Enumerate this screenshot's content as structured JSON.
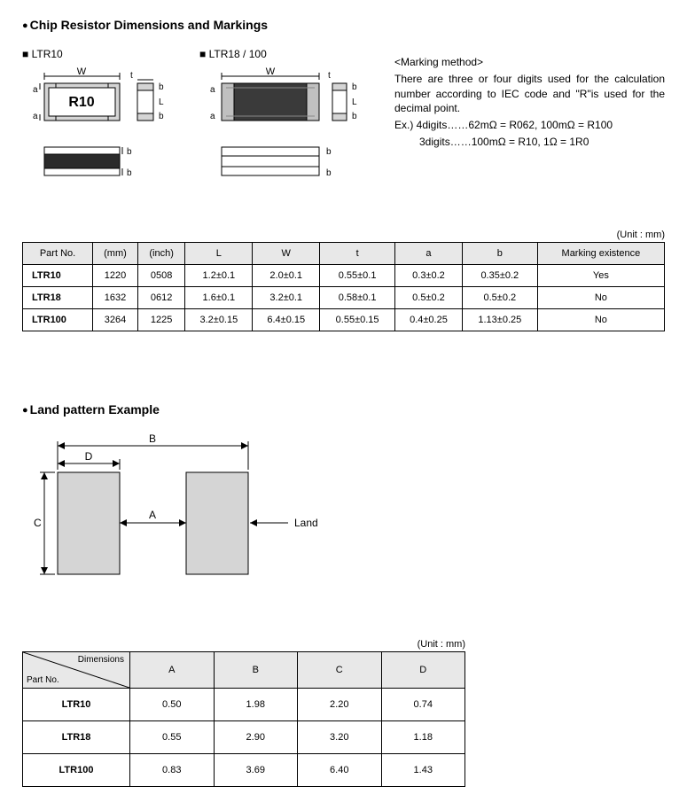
{
  "section1": {
    "title": "Chip Resistor Dimensions and Markings",
    "sub1": "LTR10",
    "sub2": "LTR18 / 100",
    "chip_label": "R10",
    "marking": {
      "title": "<Marking method>",
      "body": "There are three or four digits used for the calculation number according to IEC code and \"R\"is used for the decimal point.",
      "ex1": "Ex.) 4digits……62mΩ = R062, 100mΩ = R100",
      "ex2": "3digits……100mΩ = R10, 1Ω = 1R0"
    },
    "unit": "(Unit : mm)",
    "table": {
      "headers": [
        "Part No.",
        "(mm)",
        "(inch)",
        "L",
        "W",
        "t",
        "a",
        "b",
        "Marking existence"
      ],
      "rows": [
        {
          "part": "LTR10",
          "mm": "1220",
          "inch": "0508",
          "L": "1.2±0.1",
          "W": "2.0±0.1",
          "t": "0.55±0.1",
          "a": "0.3±0.2",
          "b": "0.35±0.2",
          "mark": "Yes"
        },
        {
          "part": "LTR18",
          "mm": "1632",
          "inch": "0612",
          "L": "1.6±0.1",
          "W": "3.2±0.1",
          "t": "0.58±0.1",
          "a": "0.5±0.2",
          "b": "0.5±0.2",
          "mark": "No"
        },
        {
          "part": "LTR100",
          "mm": "3264",
          "inch": "1225",
          "L": "3.2±0.15",
          "W": "6.4±0.15",
          "t": "0.55±0.15",
          "a": "0.4±0.25",
          "b": "1.13±0.25",
          "mark": "No"
        }
      ]
    }
  },
  "section2": {
    "title": "Land pattern Example",
    "land_label": "Land",
    "unit": "(Unit : mm)",
    "table": {
      "diag_dim": "Dimensions",
      "diag_part": "Part No.",
      "headers": [
        "A",
        "B",
        "C",
        "D"
      ],
      "rows": [
        {
          "part": "LTR10",
          "A": "0.50",
          "B": "1.98",
          "C": "2.20",
          "D": "0.74"
        },
        {
          "part": "LTR18",
          "A": "0.55",
          "B": "2.90",
          "C": "3.20",
          "D": "1.18"
        },
        {
          "part": "LTR100",
          "A": "0.83",
          "B": "3.69",
          "C": "6.40",
          "D": "1.43"
        }
      ]
    }
  },
  "colors": {
    "grey_fill": "#d5d5d5",
    "dark_fill": "#3a3a3a",
    "stroke": "#000000"
  }
}
